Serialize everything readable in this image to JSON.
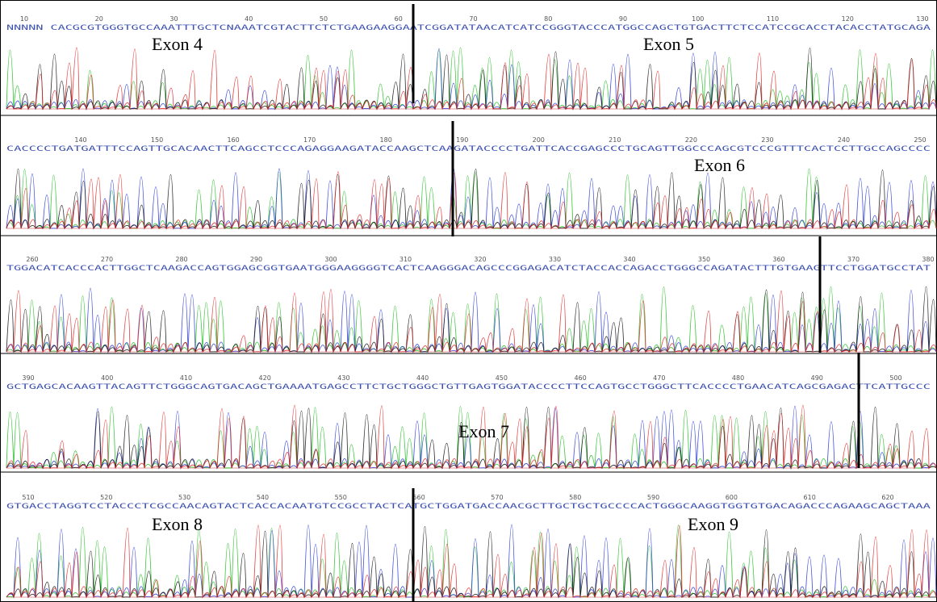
{
  "rows": [
    {
      "ticks": [
        10,
        20,
        30,
        40,
        50,
        60,
        70,
        80,
        90,
        100,
        110,
        120,
        130
      ],
      "sequence": "NNNNN CACGCGTGGGTGCCAAATTTGCTCNAAATCGTACTTCTCTGAAGAAGGAATCGGATATAACATCATCCGGGTACCCATGGCCAGCTGTGACTTCTCCATCCGCACCTACACCTATGCAGA",
      "labels": [
        "Exon 4",
        "Exon 5"
      ]
    },
    {
      "ticks": [
        140,
        150,
        160,
        170,
        180,
        190,
        200,
        210,
        220,
        230,
        240,
        250
      ],
      "sequence": "CACCCCTGATGATTTCCAGTTGCACAACTTCAGCCTCCCAGAGGAAGATACCAAGCTCAAGATACCCCTGATTCACCGAGCCCTGCAGTTGGCCCAGCGTCCCGTTTCACTCCTTGCCAGCCCC",
      "labels": [
        "Exon 6"
      ]
    },
    {
      "ticks": [
        260,
        270,
        280,
        290,
        300,
        310,
        320,
        330,
        340,
        350,
        360,
        370,
        380
      ],
      "sequence": "TGGACATCACCCACTTGGCTCAAGACCAGTGGAGCGGTGAATGGGAAGGGGTCACTCAAGGGACAGCCCGGAGACATCTACCACCAGACCTGGGCCAGATACTTTGTGAAGTTCCTGGATGCCTAT",
      "labels": []
    },
    {
      "ticks": [
        390,
        400,
        410,
        420,
        430,
        440,
        450,
        460,
        470,
        480,
        490,
        500
      ],
      "sequence": "GCTGAGCACAAGTTACAGTTCTGGGCAGTGACAGCTGAAAATGAGCCTTCTGCTGGGCTGTTGAGTGGATACCCCTTCCAGTGCCTGGGCTTCACCCCTGAACATCAGCGAGACTTCATTGCCC",
      "labels": [
        "Exon 7"
      ]
    },
    {
      "ticks": [
        510,
        520,
        530,
        540,
        550,
        560,
        570,
        580,
        590,
        600,
        610,
        620
      ],
      "sequence": "GTGACCTAGGTCCTACCCTCGCCAACAGTACTCACCACAATGTCCGCCTACTCATGCTGGATGACCAACGCTTGCTGCTGCCCCACTGGGCAAGGTGGTGTGACAGACCCAGAAGCAGCTAAA",
      "labels": [
        "Exon 8",
        "Exon 9"
      ]
    }
  ]
}
